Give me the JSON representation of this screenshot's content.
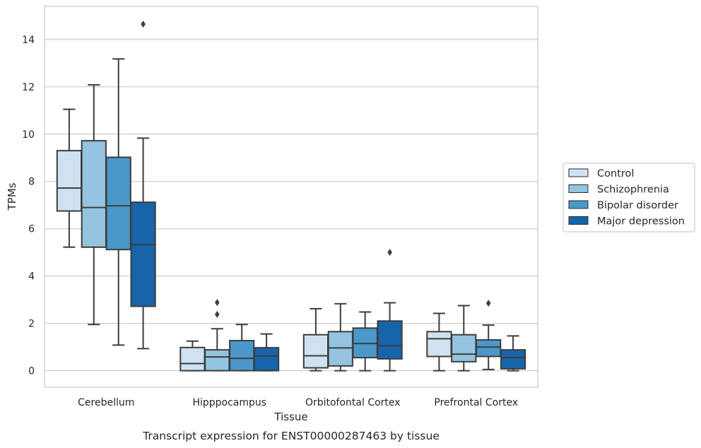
{
  "chart_data": {
    "type": "box",
    "caption": "Transcript expression for ENST00000287463 by tissue",
    "xlabel": "Tissue",
    "ylabel": "TPMs",
    "ylim": [
      -0.7,
      15.4
    ],
    "yticks": [
      "0",
      "2",
      "4",
      "6",
      "8",
      "10",
      "12",
      "14"
    ],
    "grid": "horizontal",
    "legend_position": "right",
    "categories": [
      "Cerebellum",
      "Hipppocampus",
      "Orbitofontal Cortex",
      "Prefrontal Cortex"
    ],
    "series": [
      {
        "name": "Control",
        "color": "#d0e1f2",
        "boxes": [
          {
            "whisker_low": 5.22,
            "q1": 6.75,
            "median": 7.72,
            "q3": 9.3,
            "whisker_high": 11.05,
            "outliers": []
          },
          {
            "whisker_low": 0.0,
            "q1": 0.0,
            "median": 0.3,
            "q3": 0.98,
            "whisker_high": 1.25,
            "outliers": []
          },
          {
            "whisker_low": 0.0,
            "q1": 0.12,
            "median": 0.63,
            "q3": 1.52,
            "whisker_high": 2.62,
            "outliers": []
          },
          {
            "whisker_low": 0.0,
            "q1": 0.6,
            "median": 1.35,
            "q3": 1.65,
            "whisker_high": 2.42,
            "outliers": []
          }
        ]
      },
      {
        "name": "Schizophrenia",
        "color": "#94c4df",
        "boxes": [
          {
            "whisker_low": 1.95,
            "q1": 5.22,
            "median": 6.9,
            "q3": 9.72,
            "whisker_high": 12.08,
            "outliers": []
          },
          {
            "whisker_low": 0.0,
            "q1": 0.0,
            "median": 0.58,
            "q3": 0.88,
            "whisker_high": 1.77,
            "outliers": [
              2.38,
              2.88
            ]
          },
          {
            "whisker_low": 0.0,
            "q1": 0.2,
            "median": 0.96,
            "q3": 1.65,
            "whisker_high": 2.83,
            "outliers": []
          },
          {
            "whisker_low": 0.0,
            "q1": 0.38,
            "median": 0.7,
            "q3": 1.52,
            "whisker_high": 2.75,
            "outliers": []
          }
        ]
      },
      {
        "name": "Bipolar disorder",
        "color": "#4a98c9",
        "boxes": [
          {
            "whisker_low": 1.08,
            "q1": 5.12,
            "median": 6.97,
            "q3": 9.02,
            "whisker_high": 13.18,
            "outliers": []
          },
          {
            "whisker_low": 0.0,
            "q1": 0.0,
            "median": 0.52,
            "q3": 1.27,
            "whisker_high": 1.95,
            "outliers": []
          },
          {
            "whisker_low": 0.0,
            "q1": 0.55,
            "median": 1.15,
            "q3": 1.8,
            "whisker_high": 2.48,
            "outliers": []
          },
          {
            "whisker_low": 0.05,
            "q1": 0.6,
            "median": 1.0,
            "q3": 1.3,
            "whisker_high": 1.93,
            "outliers": [
              2.85
            ]
          }
        ]
      },
      {
        "name": "Major depression",
        "color": "#1764ab",
        "boxes": [
          {
            "whisker_low": 0.93,
            "q1": 2.72,
            "median": 5.33,
            "q3": 7.12,
            "whisker_high": 9.83,
            "outliers": [
              14.65
            ]
          },
          {
            "whisker_low": 0.0,
            "q1": 0.0,
            "median": 0.62,
            "q3": 0.97,
            "whisker_high": 1.55,
            "outliers": []
          },
          {
            "whisker_low": 0.0,
            "q1": 0.5,
            "median": 1.05,
            "q3": 2.1,
            "whisker_high": 2.87,
            "outliers": [
              5.0
            ]
          },
          {
            "whisker_low": 0.0,
            "q1": 0.08,
            "median": 0.55,
            "q3": 0.88,
            "whisker_high": 1.47,
            "outliers": []
          }
        ]
      }
    ]
  }
}
